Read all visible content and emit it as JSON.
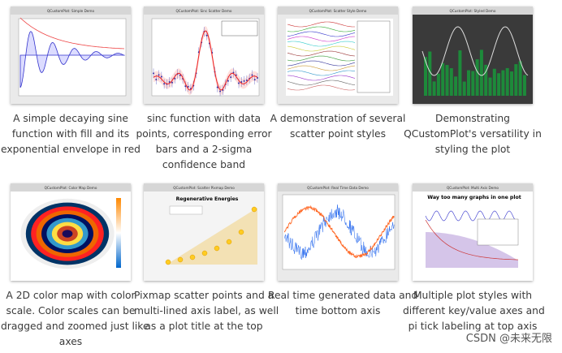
{
  "items": [
    {
      "window_title": "QCustomPlot: Simple Demo",
      "caption": [
        "A simple decaying sine",
        "function with fill and its",
        "exponential envelope in red"
      ]
    },
    {
      "window_title": "QCustomPlot: Sinc Scatter Demo",
      "caption": [
        "sinc function with data",
        "points, corresponding error",
        "bars and a 2-sigma",
        "confidence band"
      ]
    },
    {
      "window_title": "QCustomPlot: Scatter Style Demo",
      "caption": [
        "A demonstration of several",
        "scatter point styles"
      ]
    },
    {
      "window_title": "QCustomPlot: Styled Demo",
      "caption": [
        "Demonstrating",
        "QCustomPlot's versatility in",
        "styling the plot"
      ]
    },
    {
      "window_title": "QCustomPlot: Color Map Demo",
      "caption": [
        "A 2D color map with color",
        "scale. Color scales can be",
        "dragged and zoomed just like",
        "axes"
      ]
    },
    {
      "window_title": "QCustomPlot: Scatter Pixmap Demo",
      "plot_title": "Regenerative Energies",
      "caption": [
        "Pixmap scatter points and a",
        "multi-lined axis label, as well",
        "as a plot title at the top"
      ]
    },
    {
      "window_title": "QCustomPlot: Real Time Data Demo",
      "caption": [
        "Real time generated data and",
        "time bottom axis"
      ]
    },
    {
      "window_title": "QCustomPlot: Multi Axis Demo",
      "plot_title": "Way too many graphs in one plot",
      "caption": [
        "Multiple plot styles with",
        "different key/value axes and",
        "pi tick labeling at top axis"
      ]
    }
  ],
  "watermark": "CSDN @未来无限"
}
